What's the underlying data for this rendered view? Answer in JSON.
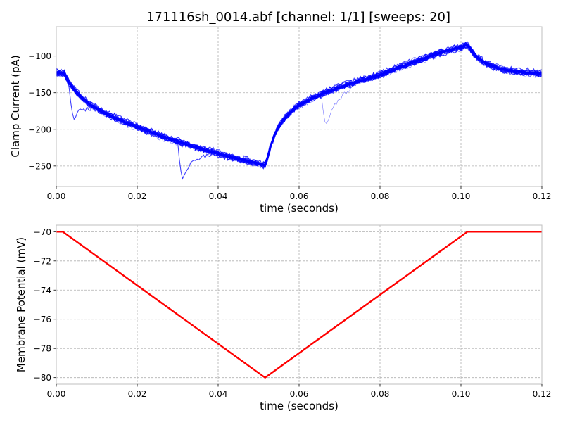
{
  "figure": {
    "title": "171116sh_0014.abf [channel: 1/1] [sweeps: 20]"
  },
  "chart_data": [
    {
      "type": "line",
      "panel": "top",
      "title": "171116sh_0014.abf [channel: 1/1] [sweeps: 20]",
      "xlabel": "time (seconds)",
      "ylabel": "Clamp Current (pA)",
      "xlim": [
        0,
        0.12
      ],
      "ylim": [
        -278,
        -60
      ],
      "xticks": [
        0.0,
        0.02,
        0.04,
        0.06,
        0.08,
        0.1,
        0.12
      ],
      "xtick_labels": [
        "0.00",
        "0.02",
        "0.04",
        "0.06",
        "0.08",
        "0.10",
        "0.12"
      ],
      "yticks": [
        -250,
        -200,
        -150,
        -100
      ],
      "ytick_labels": [
        "−250",
        "−200",
        "−150",
        "−100"
      ],
      "grid": true,
      "sweep_count": 20,
      "color": "#0000ff",
      "series": [
        {
          "x": [
            0.0,
            0.001,
            0.002,
            0.003,
            0.005,
            0.008,
            0.012,
            0.016,
            0.02,
            0.024,
            0.028,
            0.032,
            0.036,
            0.04,
            0.044,
            0.048,
            0.0515,
            0.052,
            0.0525,
            0.053,
            0.054,
            0.055,
            0.056,
            0.058,
            0.06,
            0.063,
            0.066,
            0.07,
            0.075,
            0.08,
            0.085,
            0.09,
            0.095,
            0.1,
            0.1015,
            0.102,
            0.103,
            0.105,
            0.107,
            0.11,
            0.115,
            0.12
          ],
          "y": [
            -123,
            -123,
            -124,
            -135,
            -150,
            -165,
            -178,
            -188,
            -197,
            -205,
            -213,
            -220,
            -227,
            -233,
            -239,
            -244,
            -249,
            -243,
            -233,
            -222,
            -207,
            -196,
            -188,
            -176,
            -167,
            -158,
            -151,
            -143,
            -134,
            -126,
            -115,
            -105,
            -95,
            -88,
            -84,
            -88,
            -96,
            -106,
            -112,
            -118,
            -122,
            -124
          ]
        }
      ]
    },
    {
      "type": "line",
      "panel": "bottom",
      "xlabel": "time (seconds)",
      "ylabel": "Membrane Potential (mV)",
      "xlim": [
        0,
        0.12
      ],
      "ylim": [
        -80.45,
        -69.55
      ],
      "xticks": [
        0.0,
        0.02,
        0.04,
        0.06,
        0.08,
        0.1,
        0.12
      ],
      "xtick_labels": [
        "0.00",
        "0.02",
        "0.04",
        "0.06",
        "0.08",
        "0.10",
        "0.12"
      ],
      "yticks": [
        -80,
        -78,
        -76,
        -74,
        -72,
        -70
      ],
      "ytick_labels": [
        "−80",
        "−78",
        "−76",
        "−74",
        "−72",
        "−70"
      ],
      "grid": true,
      "color": "#ff0000",
      "series": [
        {
          "x": [
            0.0,
            0.0016,
            0.0516,
            0.1016,
            0.12
          ],
          "y": [
            -70,
            -70,
            -80,
            -70,
            -70
          ]
        }
      ]
    }
  ]
}
